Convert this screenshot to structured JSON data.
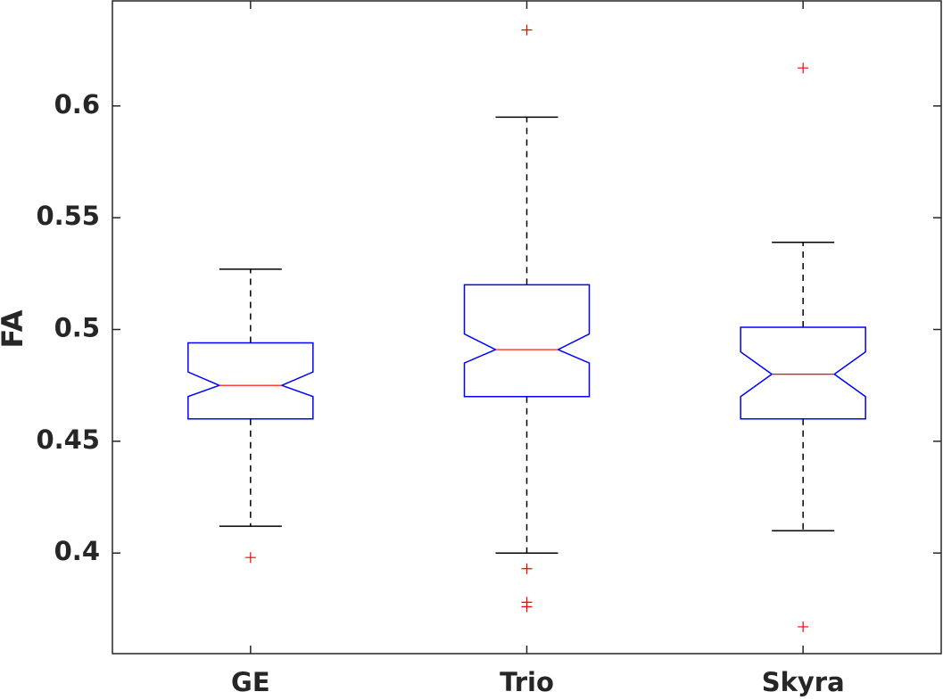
{
  "chart_data": {
    "type": "box",
    "ylabel": "FA",
    "categories": [
      "GE",
      "Trio",
      "Skyra"
    ],
    "boxes": [
      {
        "whisker_high": 0.527,
        "q3": 0.494,
        "notch_high": 0.481,
        "median": 0.475,
        "notch_low": 0.47,
        "q1": 0.46,
        "whisker_low": 0.412,
        "outliers": [
          0.398
        ]
      },
      {
        "whisker_high": 0.595,
        "q3": 0.52,
        "notch_high": 0.498,
        "median": 0.491,
        "notch_low": 0.485,
        "q1": 0.47,
        "whisker_low": 0.4,
        "outliers": [
          0.634,
          0.393,
          0.378,
          0.376
        ]
      },
      {
        "whisker_high": 0.539,
        "q3": 0.501,
        "notch_high": 0.49,
        "median": 0.48,
        "notch_low": 0.47,
        "q1": 0.46,
        "whisker_low": 0.41,
        "outliers": [
          0.617,
          0.367
        ]
      }
    ],
    "box_color": "#0000ff",
    "median_color": "#ff0000",
    "whisker_color": "#000000",
    "outlier_color": "#ff0000",
    "ylim": [
      0.355,
      0.647
    ],
    "yticks": [
      0.4,
      0.45,
      0.5,
      0.55,
      0.6
    ],
    "notched": true
  }
}
